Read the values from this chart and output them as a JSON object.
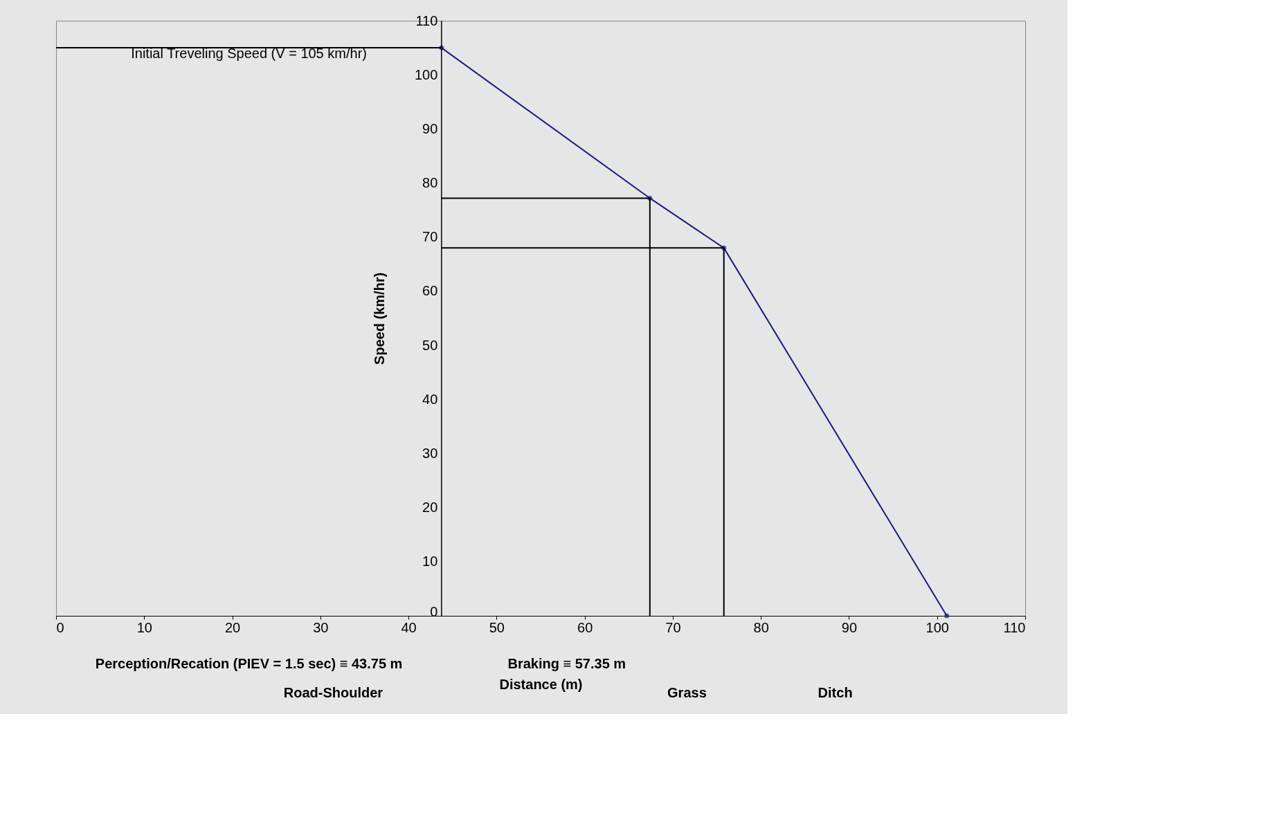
{
  "chart_data": {
    "type": "line",
    "xlabel": "Distance (m)",
    "ylabel": "Speed (km/hr)",
    "xlim": [
      0,
      110
    ],
    "xticks": [
      0,
      10,
      20,
      30,
      40,
      50,
      60,
      70,
      80,
      90,
      100,
      110
    ],
    "ylim": [
      0,
      110
    ],
    "yticks": [
      0,
      10,
      20,
      30,
      40,
      50,
      60,
      70,
      80,
      90,
      100,
      110
    ],
    "grid": false,
    "marker": "circle",
    "ref_lines": [
      {
        "axis": "x",
        "value": 43.75,
        "color": "#000000"
      }
    ],
    "series": [
      {
        "color": "#1a1a8c",
        "x": [
          43.75,
          67.4,
          75.8,
          101.1
        ],
        "values": [
          105,
          77.2,
          68,
          0
        ]
      },
      {
        "color": "#000000",
        "marker": "none",
        "x": [
          0,
          43.75
        ],
        "values": [
          105,
          105
        ]
      },
      {
        "color": "#000000",
        "marker": "none",
        "x": [
          43.75,
          67.4,
          67.4
        ],
        "values": [
          77.2,
          77.2,
          0
        ]
      },
      {
        "color": "#000000",
        "marker": "none",
        "x": [
          43.75,
          75.8,
          75.8
        ],
        "values": [
          68,
          68,
          0
        ]
      }
    ],
    "annotations": [
      "Initial Treveling Speed (V = 105 km/hr)",
      "Perception/Recation (PIEV = 1.5 sec) ≡ 43.75 m",
      "Braking ≡ 57.35 m",
      "Road-Shoulder",
      "Grass",
      "Ditch"
    ]
  }
}
